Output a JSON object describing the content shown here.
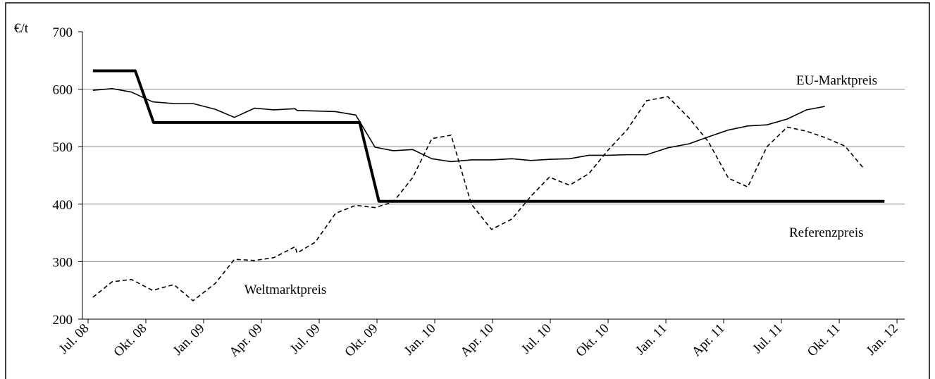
{
  "chart_data": {
    "type": "line",
    "y_label": "€/t",
    "xlim": [
      0,
      42.4
    ],
    "ylim": [
      200,
      700
    ],
    "xticks": [
      {
        "value": 0,
        "label": "Jul. 08"
      },
      {
        "value": 3,
        "label": "Okt. 08"
      },
      {
        "value": 6,
        "label": "Jan. 09"
      },
      {
        "value": 9,
        "label": "Apr. 09"
      },
      {
        "value": 12,
        "label": "Jul. 09"
      },
      {
        "value": 15,
        "label": "Okt. 09"
      },
      {
        "value": 18,
        "label": "Jan. 10"
      },
      {
        "value": 21,
        "label": "Apr. 10"
      },
      {
        "value": 24,
        "label": "Jul. 10"
      },
      {
        "value": 27,
        "label": "Okt. 10"
      },
      {
        "value": 30,
        "label": "Jan. 11"
      },
      {
        "value": 33,
        "label": "Apr. 11"
      },
      {
        "value": 36,
        "label": "Jul. 11"
      },
      {
        "value": 39,
        "label": "Okt. 11"
      },
      {
        "value": 42,
        "label": "Jan. 12"
      }
    ],
    "yticks": [
      200,
      300,
      400,
      500,
      600,
      700
    ],
    "grid": true,
    "series": [
      {
        "name": "EU-Marktpreis",
        "color": "#000000",
        "width": 1.6,
        "dash": false,
        "x": [
          0.25,
          1.25,
          2.25,
          3.35,
          4.45,
          5.45,
          6.6,
          7.6,
          8.65,
          9.65,
          10.75,
          10.85,
          11.8,
          12.85,
          13.9,
          14.9,
          15.85,
          16.85,
          17.85,
          18.85,
          19.9,
          20.95,
          22,
          23,
          23.95,
          25,
          26,
          27,
          28,
          29,
          30.1,
          31.2,
          32.2,
          33.25,
          34.25,
          35.25,
          36.3,
          37.3,
          38.25
        ],
        "values": [
          598,
          601,
          595,
          578,
          575,
          575,
          565,
          551,
          567,
          564,
          566,
          563,
          562,
          561,
          555,
          499,
          493,
          495,
          479,
          474,
          477,
          477,
          479,
          476,
          478,
          479,
          485,
          485,
          486,
          486,
          498,
          505,
          517,
          529,
          536,
          538,
          548,
          564,
          570
        ]
      },
      {
        "name": "Referenzpreis",
        "color": "#000000",
        "width": 4,
        "dash": false,
        "x": [
          0.25,
          2.45,
          3.4,
          14.1,
          15.1,
          41.35
        ],
        "values": [
          632,
          632,
          542,
          542,
          405,
          405
        ]
      },
      {
        "name": "Weltmarktpreis",
        "color": "#000000",
        "width": 1.6,
        "dash": true,
        "x": [
          0.25,
          1.25,
          2.25,
          3.35,
          4.45,
          5.45,
          6.6,
          7.6,
          8.65,
          9.65,
          10.75,
          10.85,
          11.8,
          12.85,
          13.9,
          14.9,
          15.85,
          16.85,
          17.85,
          18.85,
          19.9,
          20.95,
          22,
          23,
          23.95,
          25,
          26,
          27,
          28,
          29,
          30.1,
          31.2,
          32.2,
          33.25,
          34.25,
          35.25,
          36.3,
          37.3,
          38.25,
          39.3,
          40.25
        ],
        "values": [
          238,
          265,
          269,
          250,
          260,
          232,
          262,
          304,
          302,
          307,
          326,
          315,
          334,
          384,
          398,
          394,
          404,
          446,
          514,
          520,
          400,
          356,
          374,
          414,
          447,
          433,
          453,
          494,
          530,
          580,
          587,
          550,
          509,
          445,
          430,
          500,
          534,
          527,
          516,
          501,
          463
        ]
      }
    ]
  }
}
